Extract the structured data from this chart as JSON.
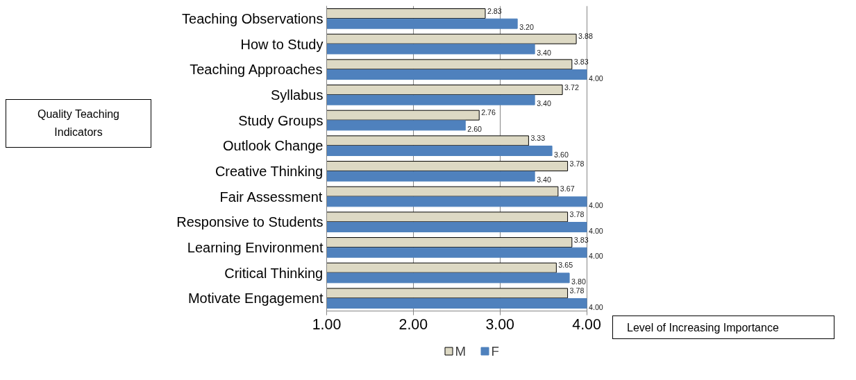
{
  "chart_data": {
    "type": "bar",
    "orientation": "horizontal",
    "categories": [
      "Teaching Observations",
      "How to Study",
      "Teaching Approaches",
      "Syllabus",
      "Study Groups",
      "Outlook Change",
      "Creative Thinking",
      "Fair Assessment",
      "Responsive to Students",
      "Learning Environment",
      "Critical Thinking",
      "Motivate Engagement"
    ],
    "series": [
      {
        "name": "M",
        "color": "#ddd9c4",
        "values": [
          2.83,
          3.88,
          3.83,
          3.72,
          2.76,
          3.33,
          3.78,
          3.67,
          3.78,
          3.83,
          3.65,
          3.78
        ],
        "value_labels": [
          "2.83",
          "3.88",
          "3.83",
          "3.72",
          "2.76",
          "3.33",
          "3.78",
          "3.67",
          "3.78",
          "3.83",
          "3.65",
          "3.78"
        ]
      },
      {
        "name": "F",
        "color": "#4f81bd",
        "values": [
          3.2,
          3.4,
          4.0,
          3.4,
          2.6,
          3.6,
          3.4,
          4.0,
          4.0,
          4.0,
          3.8,
          4.0
        ],
        "value_labels": [
          "3.20",
          "3.40",
          "4.00",
          "3.40",
          "2.60",
          "3.60",
          "3.40",
          "4.00",
          "4.00",
          "4.00",
          "3.80",
          "4.00"
        ]
      }
    ],
    "xlim": [
      1,
      4
    ],
    "xticks": [
      {
        "value": 1,
        "label": "1.00"
      },
      {
        "value": 2,
        "label": "2.00"
      },
      {
        "value": 3,
        "label": "3.00"
      },
      {
        "value": 4,
        "label": "4.00"
      }
    ],
    "grid": "x",
    "legend": "bottom",
    "annotations": [
      "Quality Teaching Indicators",
      "Level of Increasing Importance"
    ]
  }
}
